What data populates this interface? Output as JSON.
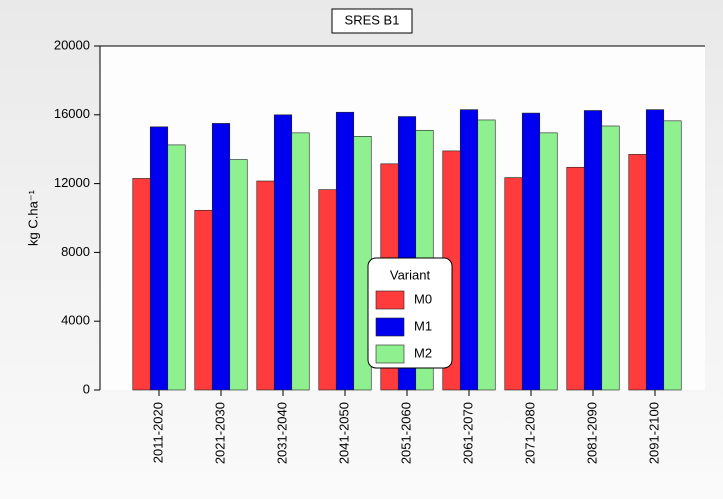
{
  "chart_data": {
    "type": "bar",
    "title": "SRES B1",
    "ylabel": "kg C.ha⁻¹",
    "categories": [
      "2011-2020",
      "2021-2030",
      "2031-2040",
      "2041-2050",
      "2051-2060",
      "2061-2070",
      "2071-2080",
      "2081-2090",
      "2091-2100"
    ],
    "legend_title": "Variant",
    "series": [
      {
        "name": "M0",
        "color": "#ff3b3b",
        "values": [
          12300,
          10450,
          12150,
          11650,
          13150,
          13900,
          12350,
          12950,
          13700
        ]
      },
      {
        "name": "M1",
        "color": "#0000f0",
        "values": [
          15300,
          15500,
          16000,
          16150,
          15900,
          16300,
          16100,
          16250,
          16300
        ]
      },
      {
        "name": "M2",
        "color": "#8ef08e",
        "values": [
          14250,
          13400,
          14950,
          14750,
          15100,
          15700,
          14950,
          15350,
          15650
        ]
      }
    ],
    "ylim": [
      0,
      20000
    ],
    "yticks": [
      0,
      4000,
      8000,
      12000,
      16000,
      20000
    ]
  }
}
